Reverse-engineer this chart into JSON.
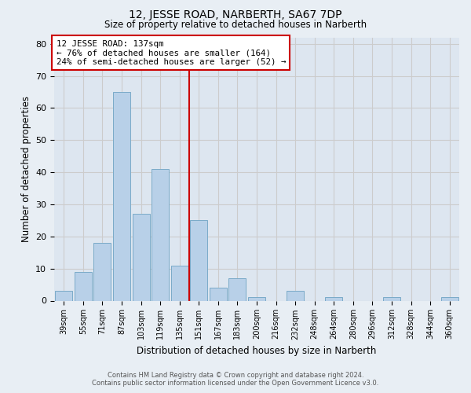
{
  "title": "12, JESSE ROAD, NARBERTH, SA67 7DP",
  "subtitle": "Size of property relative to detached houses in Narberth",
  "xlabel": "Distribution of detached houses by size in Narberth",
  "ylabel": "Number of detached properties",
  "footer_line1": "Contains HM Land Registry data © Crown copyright and database right 2024.",
  "footer_line2": "Contains public sector information licensed under the Open Government Licence v3.0.",
  "bar_labels": [
    "39sqm",
    "55sqm",
    "71sqm",
    "87sqm",
    "103sqm",
    "119sqm",
    "135sqm",
    "151sqm",
    "167sqm",
    "183sqm",
    "200sqm",
    "216sqm",
    "232sqm",
    "248sqm",
    "264sqm",
    "280sqm",
    "296sqm",
    "312sqm",
    "328sqm",
    "344sqm",
    "360sqm"
  ],
  "bar_values": [
    3,
    9,
    18,
    65,
    27,
    41,
    11,
    25,
    4,
    7,
    1,
    0,
    3,
    0,
    1,
    0,
    0,
    1,
    0,
    0,
    1
  ],
  "bar_color": "#b8d0e8",
  "bar_edge_color": "#7aaac8",
  "vline_index": 6,
  "vline_color": "#cc0000",
  "annotation_text": "12 JESSE ROAD: 137sqm\n← 76% of detached houses are smaller (164)\n24% of semi-detached houses are larger (52) →",
  "annotation_box_color": "#cc0000",
  "ylim": [
    0,
    82
  ],
  "yticks": [
    0,
    10,
    20,
    30,
    40,
    50,
    60,
    70,
    80
  ],
  "grid_color": "#cccccc",
  "fig_bg_color": "#e8eef4",
  "plot_bg_color": "#dde6f0",
  "title_fontsize": 10,
  "subtitle_fontsize": 8.5
}
